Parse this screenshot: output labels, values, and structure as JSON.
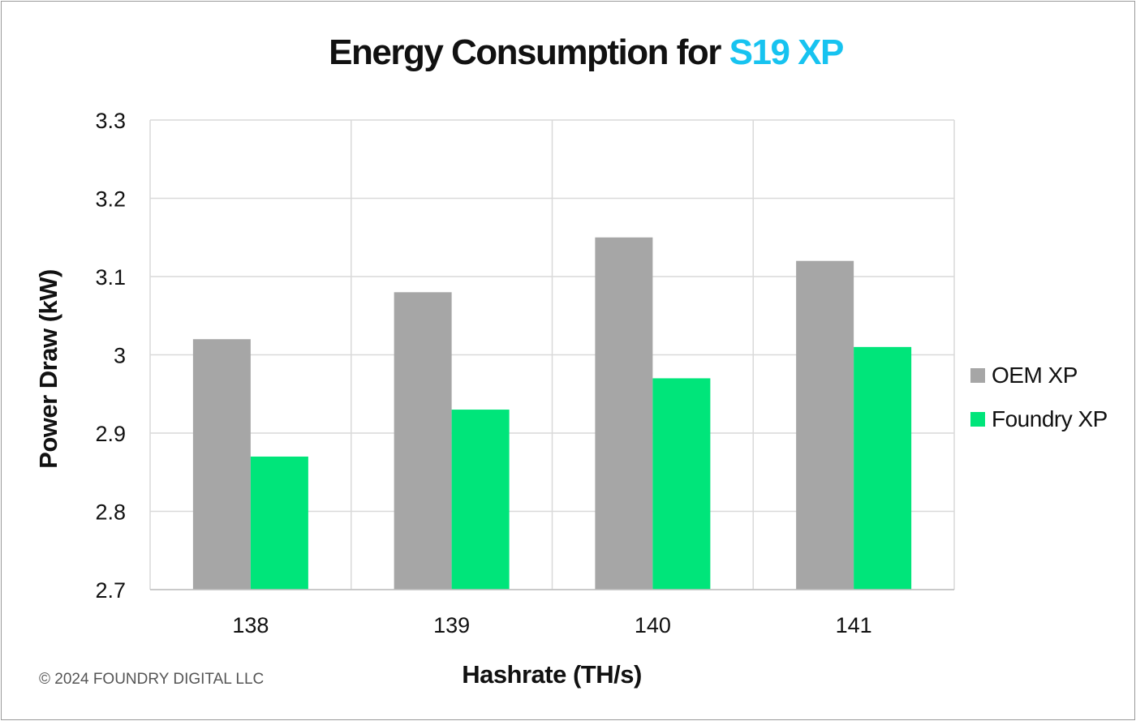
{
  "title": {
    "prefix": "Energy Consumption for",
    "accent": "S19 XP"
  },
  "copyright": "© 2024 FOUNDRY DIGITAL LLC",
  "colors": {
    "accent": "#17c3f0",
    "oem": "#a6a6a6",
    "foundry": "#00e57a",
    "grid": "#d9d9d9"
  },
  "chart_data": {
    "type": "bar",
    "title": "Energy Consumption for S19 XP",
    "xlabel": "Hashrate (TH/s)",
    "ylabel": "Power Draw (kW)",
    "categories": [
      "138",
      "139",
      "140",
      "141"
    ],
    "series": [
      {
        "name": "OEM XP",
        "values": [
          3.02,
          3.08,
          3.15,
          3.12
        ],
        "color": "#a6a6a6"
      },
      {
        "name": "Foundry XP",
        "values": [
          2.87,
          2.93,
          2.97,
          3.01
        ],
        "color": "#00e57a"
      }
    ],
    "ylim": [
      2.7,
      3.3
    ],
    "yticks": [
      "2.7",
      "2.8",
      "2.9",
      "3",
      "3.1",
      "3.2",
      "3.3"
    ],
    "grid": true,
    "legend": "right"
  }
}
